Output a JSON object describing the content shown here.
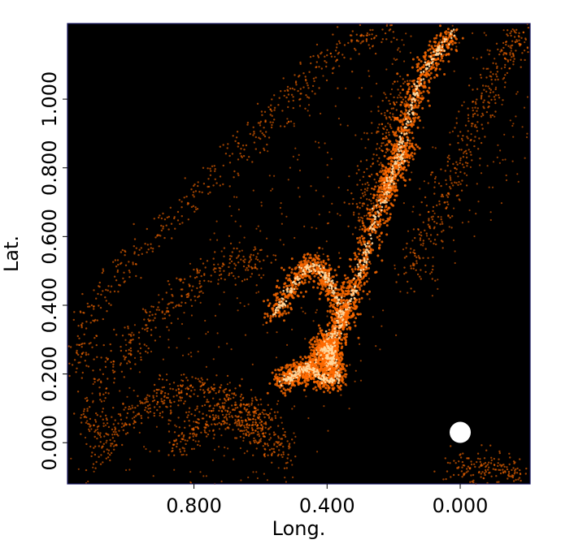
{
  "chart_data": {
    "type": "scatter",
    "title": "",
    "xlabel": "Long.",
    "ylabel": "Lat.",
    "x_inverted": true,
    "xlim": [
      1.18,
      -0.21
    ],
    "ylim": [
      -0.12,
      1.22
    ],
    "x_ticks": [
      {
        "value": 0.8,
        "label": "0.800"
      },
      {
        "value": 0.4,
        "label": "0.400"
      },
      {
        "value": 0.0,
        "label": "0.000"
      }
    ],
    "y_ticks": [
      {
        "value": 0.0,
        "label": "0.000"
      },
      {
        "value": 0.2,
        "label": "0.200"
      },
      {
        "value": 0.4,
        "label": "0.400"
      },
      {
        "value": 0.6,
        "label": "0.600"
      },
      {
        "value": 0.8,
        "label": "0.800"
      },
      {
        "value": 1.0,
        "label": "1.000"
      }
    ],
    "grid": false,
    "background_color": "#000000",
    "point_color": "#ff6a00",
    "highlight_color": "#ffffff",
    "marker": {
      "x": 0.0,
      "y": 0.03,
      "color": "#ffffff"
    },
    "structures": [
      {
        "name": "ridge-main",
        "points": [
          [
            0.46,
            0.19
          ],
          [
            0.43,
            0.24
          ],
          [
            0.4,
            0.3
          ],
          [
            0.35,
            0.37
          ],
          [
            0.32,
            0.44
          ],
          [
            0.29,
            0.53
          ],
          [
            0.26,
            0.62
          ],
          [
            0.23,
            0.72
          ],
          [
            0.19,
            0.8
          ],
          [
            0.16,
            0.88
          ]
        ]
      },
      {
        "name": "ridge-upper",
        "points": [
          [
            0.23,
            0.7
          ],
          [
            0.2,
            0.8
          ],
          [
            0.17,
            0.9
          ],
          [
            0.14,
            1.0
          ],
          [
            0.11,
            1.08
          ],
          [
            0.07,
            1.14
          ],
          [
            0.02,
            1.19
          ]
        ]
      },
      {
        "name": "lobe-center",
        "points": [
          [
            0.56,
            0.37
          ],
          [
            0.52,
            0.43
          ],
          [
            0.47,
            0.5
          ],
          [
            0.44,
            0.52
          ],
          [
            0.4,
            0.48
          ],
          [
            0.37,
            0.42
          ],
          [
            0.35,
            0.36
          ],
          [
            0.38,
            0.3
          ],
          [
            0.42,
            0.27
          ]
        ]
      },
      {
        "name": "core",
        "points": [
          [
            0.4,
            0.24
          ],
          [
            0.41,
            0.27
          ],
          [
            0.39,
            0.28
          ],
          [
            0.38,
            0.25
          ],
          [
            0.4,
            0.22
          ],
          [
            0.37,
            0.23
          ]
        ]
      },
      {
        "name": "base",
        "points": [
          [
            0.54,
            0.18
          ],
          [
            0.51,
            0.19
          ],
          [
            0.48,
            0.21
          ],
          [
            0.45,
            0.22
          ],
          [
            0.42,
            0.19
          ],
          [
            0.39,
            0.18
          ],
          [
            0.36,
            0.2
          ]
        ]
      },
      {
        "name": "arc-lower",
        "points": [
          [
            1.1,
            -0.05
          ],
          [
            1.05,
            0.03
          ],
          [
            0.98,
            0.09
          ],
          [
            0.9,
            0.13
          ],
          [
            0.82,
            0.15
          ],
          [
            0.74,
            0.14
          ],
          [
            0.66,
            0.12
          ],
          [
            0.6,
            0.08
          ],
          [
            0.56,
            0.02
          ],
          [
            0.55,
            -0.05
          ]
        ]
      },
      {
        "name": "arc-outer",
        "points": [
          [
            1.16,
            0.2
          ],
          [
            1.12,
            0.35
          ],
          [
            1.02,
            0.5
          ],
          [
            0.9,
            0.62
          ],
          [
            0.75,
            0.75
          ],
          [
            0.62,
            0.88
          ],
          [
            0.52,
            1.0
          ],
          [
            0.42,
            1.1
          ],
          [
            0.3,
            1.18
          ],
          [
            0.2,
            1.21
          ]
        ]
      },
      {
        "name": "arc-mid",
        "points": [
          [
            1.13,
            0.05
          ],
          [
            1.07,
            0.18
          ],
          [
            0.98,
            0.3
          ],
          [
            0.88,
            0.4
          ],
          [
            0.78,
            0.47
          ],
          [
            0.68,
            0.52
          ],
          [
            0.6,
            0.53
          ]
        ]
      },
      {
        "name": "plume-right",
        "points": [
          [
            0.15,
            0.45
          ],
          [
            0.1,
            0.6
          ],
          [
            0.05,
            0.7
          ],
          [
            0.0,
            0.82
          ],
          [
            -0.05,
            0.95
          ],
          [
            -0.1,
            1.05
          ],
          [
            -0.15,
            1.15
          ],
          [
            -0.19,
            1.19
          ]
        ]
      },
      {
        "name": "filament-mid",
        "points": [
          [
            0.31,
            0.64
          ],
          [
            0.27,
            0.74
          ],
          [
            0.24,
            0.86
          ],
          [
            0.2,
            0.96
          ],
          [
            0.16,
            1.04
          ]
        ]
      },
      {
        "name": "filament-bl",
        "points": [
          [
            0.86,
            -0.02
          ],
          [
            0.8,
            0.04
          ],
          [
            0.74,
            0.08
          ],
          [
            0.68,
            0.07
          ],
          [
            0.63,
            0.04
          ],
          [
            0.59,
            0.0
          ]
        ]
      },
      {
        "name": "bottom-right",
        "points": [
          [
            0.02,
            -0.08
          ],
          [
            -0.05,
            -0.07
          ],
          [
            -0.12,
            -0.08
          ],
          [
            -0.18,
            -0.1
          ]
        ]
      }
    ]
  }
}
